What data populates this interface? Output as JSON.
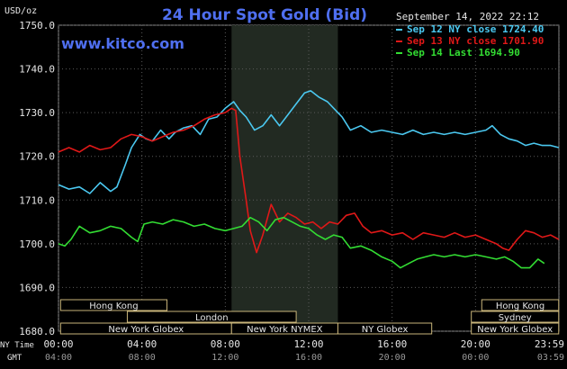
{
  "chart_data": {
    "type": "line",
    "title": "24 Hour Spot Gold (Bid)",
    "watermark": "www.kitco.com",
    "ylabel": "USD/oz",
    "ylim": [
      1680,
      1750
    ],
    "y_ticks": [
      "1750.0",
      "1740.0",
      "1730.0",
      "1720.0",
      "1710.0",
      "1700.0",
      "1690.0",
      "1680.0"
    ],
    "x_ticks_ny": [
      "00:00",
      "04:00",
      "08:00",
      "12:00",
      "16:00",
      "20:00",
      "23:59"
    ],
    "x_ticks_gmt": [
      "04:00",
      "08:00",
      "12:00",
      "16:00",
      "20:00",
      "00:00",
      "03:59"
    ],
    "x_axis_label_ny": "NY Time",
    "x_axis_label_gmt": "GMT",
    "date_label": "September 14, 2022 22:12",
    "highlight_hours": [
      8.3,
      13.4
    ],
    "series": [
      {
        "name": "Sep 12 NY close 1724.40",
        "color": "#4bc8f0",
        "hours": [
          0,
          0.5,
          1,
          1.5,
          2,
          2.5,
          2.8,
          3.2,
          3.5,
          3.9,
          4.2,
          4.5,
          4.9,
          5.3,
          5.6,
          6.0,
          6.4,
          6.8,
          7.2,
          7.6,
          8.0,
          8.4,
          8.7,
          9.0,
          9.4,
          9.8,
          10.2,
          10.6,
          11.0,
          11.4,
          11.8,
          12.1,
          12.5,
          12.9,
          13.2,
          13.6,
          14.0,
          14.5,
          15.0,
          15.5,
          16.0,
          16.5,
          17.0,
          17.5,
          18.0,
          18.5,
          19.0,
          19.5,
          20.0,
          20.5,
          20.8,
          21.2,
          21.6,
          22.0,
          22.4,
          22.8,
          23.2,
          23.6,
          23.99
        ],
        "values": [
          1713.5,
          1712.5,
          1713,
          1711.5,
          1714,
          1712,
          1713,
          1718,
          1722,
          1725,
          1724,
          1723.5,
          1726,
          1724,
          1725.5,
          1726.5,
          1727,
          1725,
          1728.5,
          1729,
          1731,
          1732.5,
          1730.5,
          1729,
          1726,
          1727,
          1729.5,
          1727,
          1729.5,
          1732,
          1734.5,
          1735,
          1733.5,
          1732.5,
          1731,
          1729,
          1726,
          1727,
          1725.5,
          1726,
          1725.5,
          1725,
          1726,
          1725,
          1725.5,
          1725,
          1725.5,
          1725,
          1725.5,
          1726,
          1727,
          1725,
          1724,
          1723.5,
          1722.5,
          1723,
          1722.5,
          1722.5,
          1722
        ]
      },
      {
        "name": "Sep 13 NY close 1701.90",
        "color": "#e01818",
        "hours": [
          0,
          0.5,
          1,
          1.5,
          2,
          2.5,
          3.0,
          3.5,
          4.0,
          4.5,
          5.0,
          5.5,
          6.0,
          6.5,
          7.0,
          7.5,
          8.0,
          8.3,
          8.5,
          8.7,
          9.0,
          9.2,
          9.5,
          9.8,
          10.2,
          10.6,
          11.0,
          11.4,
          11.8,
          12.2,
          12.6,
          13.0,
          13.4,
          13.8,
          14.2,
          14.6,
          15.0,
          15.5,
          16.0,
          16.5,
          17.0,
          17.5,
          18.0,
          18.5,
          19.0,
          19.5,
          20.0,
          20.5,
          21.0,
          21.3,
          21.6,
          22.0,
          22.4,
          22.8,
          23.2,
          23.6,
          23.99
        ],
        "values": [
          1721,
          1722,
          1721,
          1722.5,
          1721.5,
          1722,
          1724,
          1725,
          1724.5,
          1723.5,
          1724.5,
          1725.5,
          1726,
          1727,
          1728.5,
          1729.5,
          1730,
          1731,
          1730.5,
          1720,
          1710,
          1703,
          1698,
          1702,
          1709,
          1705,
          1707,
          1706,
          1704.5,
          1705,
          1703.5,
          1705,
          1704.5,
          1706.5,
          1707,
          1704,
          1702.5,
          1703,
          1702,
          1702.5,
          1701,
          1702.5,
          1702,
          1701.5,
          1702.5,
          1701.5,
          1702,
          1701,
          1700,
          1699,
          1698.5,
          1701,
          1703,
          1702.5,
          1701.5,
          1702,
          1701
        ]
      },
      {
        "name": "Sep 14 Last 1694.90",
        "color": "#33dd33",
        "hours": [
          0,
          0.3,
          0.6,
          1.0,
          1.5,
          2.0,
          2.5,
          3.0,
          3.5,
          3.8,
          4.1,
          4.5,
          5.0,
          5.5,
          6.0,
          6.5,
          7.0,
          7.5,
          8.0,
          8.4,
          8.8,
          9.2,
          9.6,
          10.0,
          10.4,
          10.8,
          11.2,
          11.6,
          12.0,
          12.4,
          12.8,
          13.2,
          13.6,
          14.0,
          14.5,
          15.0,
          15.5,
          16.0,
          16.4,
          16.8,
          17.2,
          17.6,
          18.0,
          18.5,
          19.0,
          19.5,
          20.0,
          20.5,
          21.0,
          21.4,
          21.8,
          22.2,
          22.6,
          23.0,
          23.3
        ],
        "values": [
          1700,
          1699.5,
          1701,
          1704,
          1702.5,
          1703,
          1704,
          1703.5,
          1701.5,
          1700.5,
          1704.5,
          1705,
          1704.5,
          1705.5,
          1705,
          1704,
          1704.5,
          1703.5,
          1703,
          1703.5,
          1704,
          1706,
          1705,
          1703,
          1705.5,
          1706,
          1705,
          1704,
          1703.5,
          1702,
          1701,
          1702,
          1701.5,
          1699,
          1699.5,
          1698.5,
          1697,
          1696,
          1694.5,
          1695.5,
          1696.5,
          1697,
          1697.5,
          1697,
          1697.5,
          1697,
          1697.5,
          1697,
          1696.5,
          1697,
          1696,
          1694.5,
          1694.5,
          1696.5,
          1695.5
        ]
      }
    ],
    "session_bars": [
      {
        "label": "Hong Kong",
        "start": 0.1,
        "end": 5.2,
        "row": 0
      },
      {
        "label": "Hong Kong",
        "start": 20.3,
        "end": 23.99,
        "row": 0
      },
      {
        "label": "London",
        "start": 3.3,
        "end": 11.4,
        "row": 1
      },
      {
        "label": "Sydney",
        "start": 19.8,
        "end": 23.99,
        "row": 1
      },
      {
        "label": "New York Globex",
        "start": 0.1,
        "end": 8.3,
        "row": 2
      },
      {
        "label": "New York NYMEX",
        "start": 8.3,
        "end": 13.4,
        "row": 2
      },
      {
        "label": "NY Globex",
        "start": 13.4,
        "end": 17.9,
        "row": 2
      },
      {
        "label": "New York Globex",
        "start": 19.8,
        "end": 23.99,
        "row": 2
      }
    ]
  }
}
